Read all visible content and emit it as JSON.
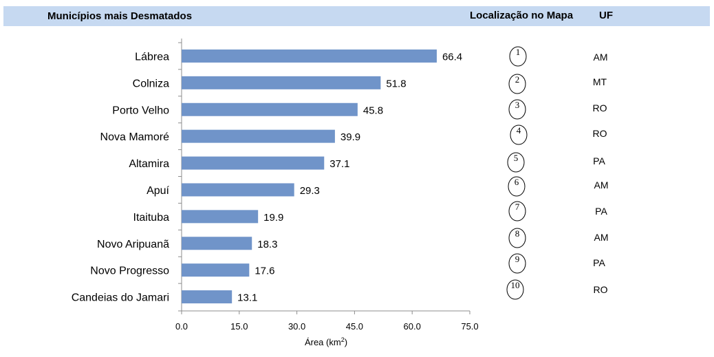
{
  "header": {
    "title": "Municípios mais Desmatados",
    "map_column": "Localização no Mapa",
    "uf_column": "UF"
  },
  "colors": {
    "bar": "#7094c9",
    "header_bg": "#c6d9f1",
    "axis": "#8c8c8c"
  },
  "chart_data": {
    "type": "bar",
    "orientation": "horizontal",
    "categories": [
      "Lábrea",
      "Colniza",
      "Porto Velho",
      "Nova Mamoré",
      "Altamira",
      "Apuí",
      "Itaituba",
      "Novo Aripuanã",
      "Novo Progresso",
      "Candeias do Jamari"
    ],
    "values": [
      66.4,
      51.8,
      45.8,
      39.9,
      37.1,
      29.3,
      19.9,
      18.3,
      17.6,
      13.1
    ],
    "value_labels": [
      "66.4",
      "51.8",
      "45.8",
      "39.9",
      "37.1",
      "29.3",
      "19.9",
      "18.3",
      "17.6",
      "13.1"
    ],
    "xlabel_prefix": "Área (km",
    "xlabel_sup": "2",
    "xlabel_suffix": ")",
    "xlim": [
      0,
      75
    ],
    "ticks": [
      0,
      15,
      30,
      45,
      60,
      75
    ],
    "tick_labels": [
      "0.0",
      "15.0",
      "30.0",
      "45.0",
      "60.0",
      "75.0"
    ],
    "grid": false
  },
  "map_locations": [
    "1",
    "2",
    "3",
    "4",
    "5",
    "6",
    "7",
    "8",
    "9",
    "10"
  ],
  "uf": [
    "AM",
    "MT",
    "RO",
    "RO",
    "PA",
    "AM",
    "PA",
    "AM",
    "PA",
    "RO"
  ]
}
